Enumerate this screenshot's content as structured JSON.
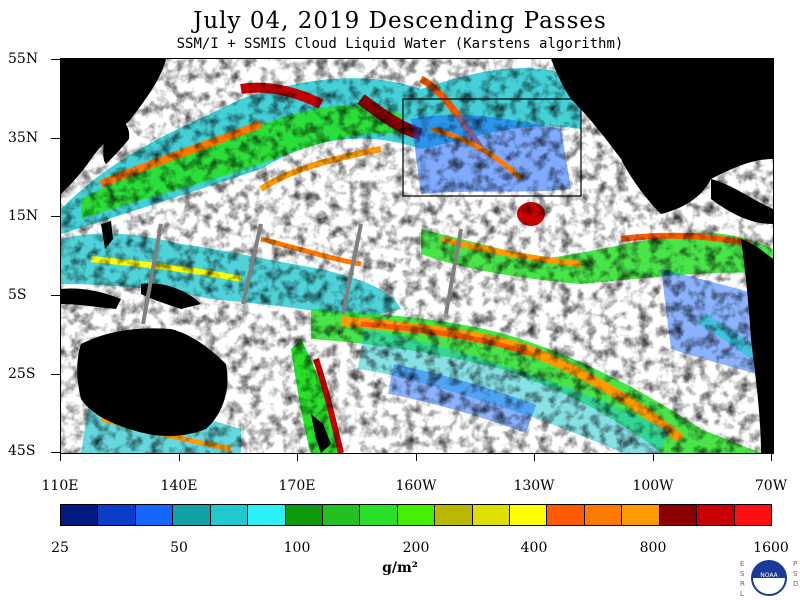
{
  "title": "July 04, 2019  Descending Passes",
  "subtitle": "SSM/I + SSMIS Cloud Liquid Water (Karstens algorithm)",
  "latitude_labels": [
    "55N",
    "35N",
    "15N",
    "5S",
    "25S",
    "45S"
  ],
  "longitude_labels": [
    "110E",
    "140E",
    "170E",
    "160W",
    "130W",
    "100W",
    "70W"
  ],
  "colorbar": {
    "colors": [
      "#001a80",
      "#0a3ec8",
      "#1565ff",
      "#10a0a6",
      "#22c8d0",
      "#2cf0f8",
      "#0d9a0d",
      "#22c020",
      "#28e028",
      "#44f000",
      "#b8b800",
      "#dede00",
      "#ffff00",
      "#ff5a00",
      "#ff7a00",
      "#ff9a00",
      "#8c0000",
      "#c80000",
      "#ff1010"
    ],
    "tick_labels": [
      "25",
      "50",
      "100",
      "200",
      "400",
      "800",
      "1600"
    ],
    "unit": "g/m²"
  },
  "logo": {
    "left_text": "ESRL",
    "right_text": "PSD",
    "center_text": "NOAA"
  },
  "map_colors": {
    "land": "#000000",
    "no_data_swath": "#808080",
    "box_outline": "#000000"
  }
}
